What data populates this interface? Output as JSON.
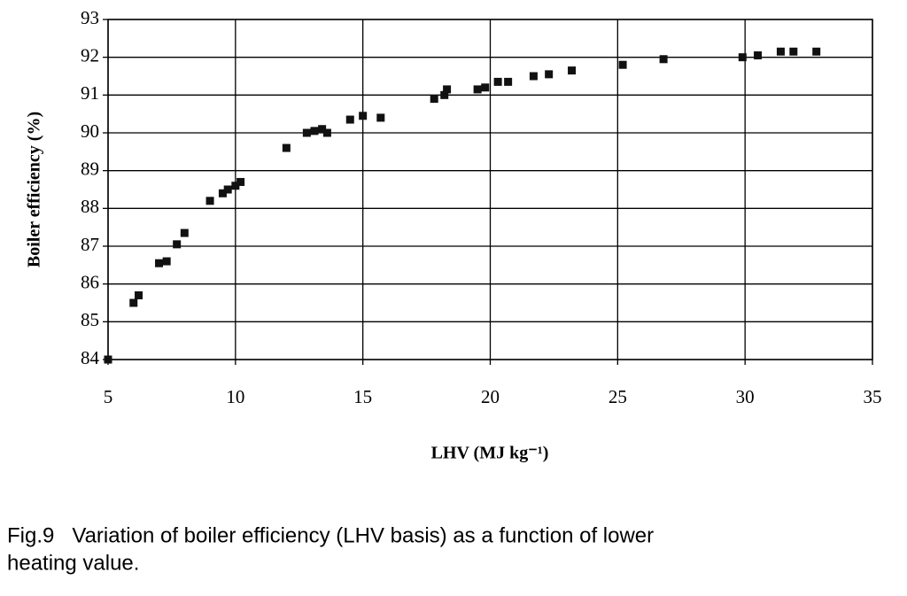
{
  "chart_data": {
    "type": "scatter",
    "xlabel": "LHV (MJ kg⁻¹)",
    "ylabel": "Boiler efficiency (%)",
    "caption": [
      "Fig.9   Variation of boiler efficiency (LHV basis) as a function of lower",
      "heating value."
    ],
    "xlim": [
      5,
      35
    ],
    "xticks": [
      5,
      10,
      15,
      20,
      25,
      30,
      35
    ],
    "ylim": [
      84,
      93
    ],
    "yticks": [
      84,
      85,
      86,
      87,
      88,
      89,
      90,
      91,
      92,
      93
    ],
    "grid": true,
    "color": "#111111",
    "x": [
      5.0,
      6.0,
      6.2,
      7.0,
      7.3,
      7.7,
      8.0,
      9.0,
      9.5,
      9.7,
      10.0,
      10.2,
      12.0,
      12.8,
      13.1,
      13.4,
      13.6,
      14.5,
      15.0,
      15.7,
      17.8,
      18.2,
      18.3,
      19.5,
      19.8,
      20.3,
      20.7,
      21.7,
      22.3,
      23.2,
      25.2,
      26.8,
      29.9,
      30.5,
      31.4,
      31.9,
      32.8
    ],
    "y": [
      84.0,
      85.5,
      85.7,
      86.55,
      86.6,
      87.05,
      87.35,
      88.2,
      88.4,
      88.5,
      88.6,
      88.7,
      89.6,
      90.0,
      90.05,
      90.1,
      90.0,
      90.35,
      90.45,
      90.4,
      90.9,
      91.0,
      91.15,
      91.15,
      91.2,
      91.35,
      91.35,
      91.5,
      91.55,
      91.65,
      91.8,
      91.95,
      92.0,
      92.05,
      92.15,
      92.15,
      92.15
    ]
  }
}
